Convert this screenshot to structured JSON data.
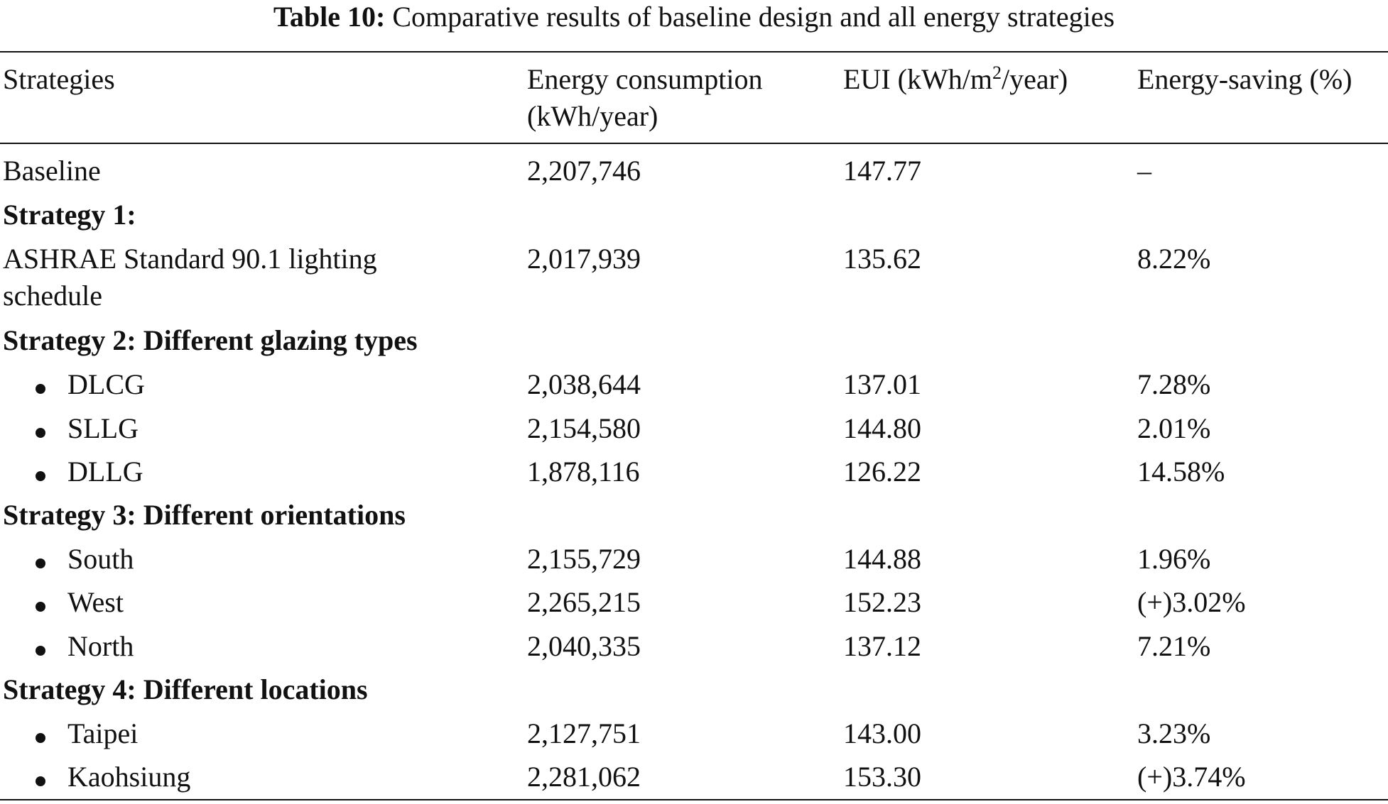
{
  "caption": {
    "label": "Table 10:",
    "text": "Comparative results of baseline design and all energy strategies"
  },
  "headers": {
    "strategies": "Strategies",
    "energy_line1": "Energy consumption",
    "energy_line2": "(kWh/year)",
    "eui_prefix": "EUI (kWh/m",
    "eui_sup": "2",
    "eui_suffix": "/year)",
    "saving": "Energy-saving (%)"
  },
  "rows": {
    "baseline": {
      "name": "Baseline",
      "energy": "2,207,746",
      "eui": "147.77",
      "saving": "–"
    },
    "s1_title": "Strategy 1:",
    "s1": {
      "name_line1": "ASHRAE Standard 90.1 lighting",
      "name_line2": "schedule",
      "energy": "2,017,939",
      "eui": "135.62",
      "saving": "8.22%"
    },
    "s2_title": "Strategy 2: Different glazing types",
    "dlcg": {
      "name": "DLCG",
      "energy": "2,038,644",
      "eui": "137.01",
      "saving": "7.28%"
    },
    "sllg": {
      "name": "SLLG",
      "energy": "2,154,580",
      "eui": "144.80",
      "saving": "2.01%"
    },
    "dllg": {
      "name": "DLLG",
      "energy": "1,878,116",
      "eui": "126.22",
      "saving": "14.58%"
    },
    "s3_title": "Strategy 3: Different orientations",
    "south": {
      "name": "South",
      "energy": "2,155,729",
      "eui": "144.88",
      "saving": "1.96%"
    },
    "west": {
      "name": "West",
      "energy": "2,265,215",
      "eui": "152.23",
      "saving": "(+)3.02%"
    },
    "north": {
      "name": "North",
      "energy": "2,040,335",
      "eui": "137.12",
      "saving": "7.21%"
    },
    "s4_title": "Strategy 4: Different locations",
    "taipei": {
      "name": "Taipei",
      "energy": "2,127,751",
      "eui": "143.00",
      "saving": "3.23%"
    },
    "kaohsiung": {
      "name": "Kaohsiung",
      "energy": "2,281,062",
      "eui": "153.30",
      "saving": "(+)3.74%"
    }
  }
}
